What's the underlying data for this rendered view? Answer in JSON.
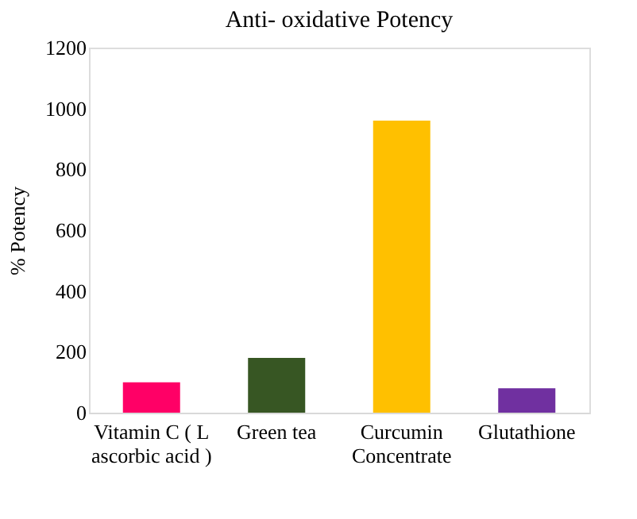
{
  "chart_data": {
    "type": "bar",
    "title": "Anti- oxidative Potency",
    "ylabel": "% Potency",
    "categories": [
      "Vitamin C ( L ascorbic acid )",
      "Green tea",
      "Curcumin Concentrate",
      "Glutathione"
    ],
    "values": [
      100,
      180,
      960,
      80
    ],
    "colors": [
      "#ff0066",
      "#375623",
      "#ffc000",
      "#7030a0"
    ],
    "ylim": [
      0,
      1200
    ],
    "yticks": [
      0,
      200,
      400,
      600,
      800,
      1000,
      1200
    ],
    "grid": false
  }
}
